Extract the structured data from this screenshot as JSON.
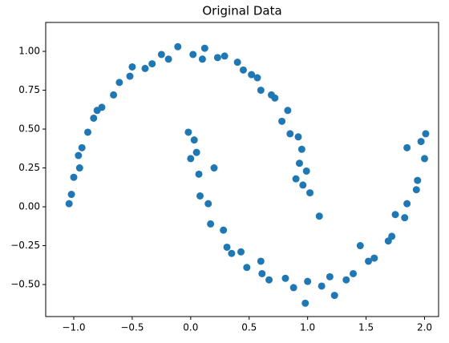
{
  "chart_data": {
    "type": "scatter",
    "title": "Original Data",
    "color": "#1f77b4",
    "grid": false,
    "xlim": [
      -1.24,
      2.12
    ],
    "ylim": [
      -0.706,
      1.186
    ],
    "xticks": [
      {
        "value": -1,
        "label": "−1.0"
      },
      {
        "value": -0.5,
        "label": "−0.5"
      },
      {
        "value": 0,
        "label": "0.0"
      },
      {
        "value": 0.5,
        "label": "0.5"
      },
      {
        "value": 1,
        "label": "1.0"
      },
      {
        "value": 1.5,
        "label": "1.5"
      },
      {
        "value": 2,
        "label": "2.0"
      }
    ],
    "yticks": [
      {
        "value": -0.5,
        "label": "−0.50"
      },
      {
        "value": -0.25,
        "label": "−0.25"
      },
      {
        "value": 0,
        "label": "0.00"
      },
      {
        "value": 0.25,
        "label": "0.25"
      },
      {
        "value": 0.5,
        "label": "0.50"
      },
      {
        "value": 0.75,
        "label": "0.75"
      },
      {
        "value": 1,
        "label": "1.00"
      }
    ],
    "x": [
      1.02,
      0.96,
      0.99,
      0.93,
      0.92,
      0.85,
      0.83,
      0.72,
      0.69,
      0.57,
      0.52,
      0.4,
      0.29,
      0.23,
      0.12,
      0.02,
      -0.11,
      -0.19,
      -0.33,
      -0.39,
      -0.52,
      -0.61,
      -0.66,
      -0.76,
      -0.83,
      -0.88,
      -0.93,
      -0.96,
      -1.0,
      -1.02,
      -1.04,
      0.9,
      0.6,
      -0.5,
      -0.95,
      0.1,
      0.45,
      -0.8,
      0.95,
      -0.25,
      0.78,
      -0.02,
      0.03,
      0.0,
      0.07,
      0.08,
      0.15,
      0.17,
      0.28,
      0.31,
      0.43,
      0.48,
      0.61,
      0.67,
      0.81,
      0.88,
      1.0,
      1.12,
      1.19,
      1.33,
      1.39,
      1.52,
      1.57,
      1.69,
      1.72,
      1.83,
      1.85,
      1.93,
      1.94,
      2.0,
      1.97,
      2.01,
      0.98,
      1.23,
      1.1,
      0.2,
      1.85,
      0.6,
      1.45,
      0.35,
      1.75,
      0.05
    ],
    "y": [
      0.09,
      0.14,
      0.23,
      0.28,
      0.45,
      0.47,
      0.62,
      0.7,
      0.72,
      0.83,
      0.85,
      0.93,
      0.97,
      0.96,
      1.02,
      0.98,
      1.03,
      0.95,
      0.92,
      0.89,
      0.84,
      0.8,
      0.72,
      0.64,
      0.57,
      0.48,
      0.38,
      0.33,
      0.19,
      0.08,
      0.02,
      0.18,
      0.75,
      0.9,
      0.25,
      0.95,
      0.88,
      0.62,
      0.37,
      0.98,
      0.55,
      0.48,
      0.43,
      0.31,
      0.21,
      0.07,
      0.02,
      -0.11,
      -0.15,
      -0.26,
      -0.29,
      -0.39,
      -0.43,
      -0.47,
      -0.46,
      -0.52,
      -0.48,
      -0.51,
      -0.45,
      -0.47,
      -0.43,
      -0.35,
      -0.33,
      -0.22,
      -0.19,
      -0.07,
      0.02,
      0.11,
      0.17,
      0.31,
      0.42,
      0.47,
      -0.62,
      -0.57,
      -0.06,
      0.25,
      0.38,
      -0.35,
      -0.25,
      -0.3,
      -0.05,
      0.35
    ]
  }
}
